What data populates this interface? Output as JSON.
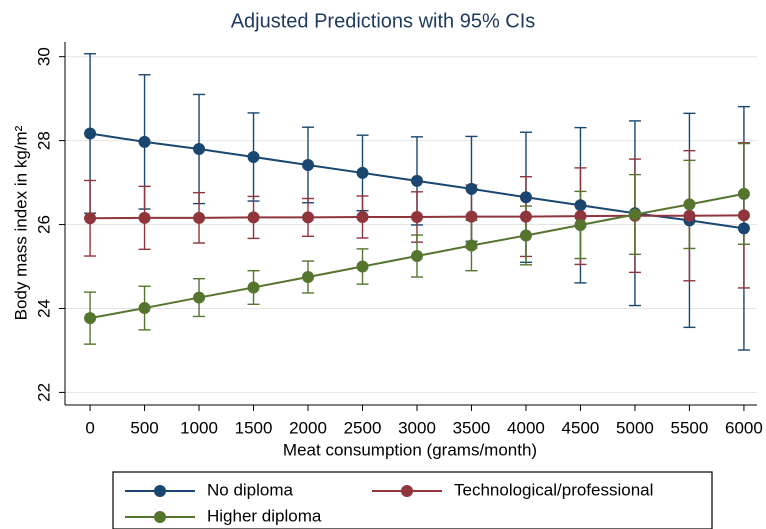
{
  "chart_data": {
    "type": "line",
    "title": "Adjusted Predictions with 95% CIs",
    "x_label": "Meat consumption (grams/month)",
    "y_label": "Body mass index in kg/m²",
    "x": [
      0,
      500,
      1000,
      1500,
      2000,
      2500,
      3000,
      3500,
      4000,
      4500,
      5000,
      5500,
      6000
    ],
    "xlim": [
      -230,
      6120
    ],
    "xticks": [
      0,
      500,
      1000,
      1500,
      2000,
      2500,
      3000,
      3500,
      4000,
      4500,
      5000,
      5500,
      6000
    ],
    "ylim": [
      21.7,
      30.35
    ],
    "yticks": [
      22,
      24,
      26,
      28,
      30
    ],
    "grid": true,
    "series": [
      {
        "name": "No diploma",
        "color": "#1a476f",
        "values": [
          28.17,
          27.97,
          27.8,
          27.61,
          27.42,
          27.23,
          27.04,
          26.85,
          26.65,
          26.46,
          26.27,
          26.1,
          25.91
        ],
        "errors": [
          1.9,
          1.6,
          1.3,
          1.05,
          0.9,
          0.9,
          1.05,
          1.25,
          1.55,
          1.85,
          2.2,
          2.55,
          2.9
        ]
      },
      {
        "name": "Technological/professional",
        "color": "#90353b",
        "values": [
          26.15,
          26.16,
          26.16,
          26.17,
          26.17,
          26.18,
          26.18,
          26.19,
          26.19,
          26.2,
          26.21,
          26.21,
          26.22
        ],
        "errors": [
          0.9,
          0.75,
          0.6,
          0.5,
          0.45,
          0.5,
          0.6,
          0.75,
          0.95,
          1.15,
          1.35,
          1.55,
          1.73
        ]
      },
      {
        "name": "Higher diploma",
        "color": "#55752f",
        "values": [
          23.77,
          24.01,
          24.26,
          24.5,
          24.75,
          25.0,
          25.25,
          25.5,
          25.74,
          25.99,
          26.24,
          26.48,
          26.73
        ],
        "errors": [
          0.62,
          0.52,
          0.45,
          0.4,
          0.38,
          0.42,
          0.5,
          0.6,
          0.7,
          0.8,
          0.95,
          1.05,
          1.2
        ]
      }
    ]
  }
}
